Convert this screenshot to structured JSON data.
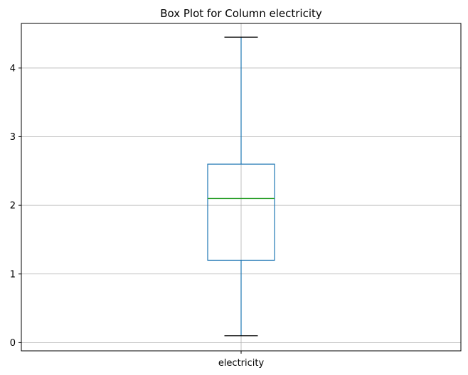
{
  "chart_data": {
    "type": "box",
    "title": "Box Plot for Column electricity",
    "xlabel": "",
    "ylabel": "",
    "categories": [
      "electricity"
    ],
    "boxes": [
      {
        "whisker_low": 0.1,
        "q1": 1.2,
        "median": 2.1,
        "q3": 2.6,
        "whisker_high": 4.45
      }
    ],
    "ylim": [
      -0.12,
      4.65
    ],
    "yticks": [
      0,
      1,
      2,
      3,
      4
    ],
    "grid": true,
    "colors": {
      "box": "#1f77b4",
      "median": "#2ca02c",
      "whisker": "#1f77b4",
      "cap": "#000000",
      "grid": "#b0b0b0"
    }
  }
}
